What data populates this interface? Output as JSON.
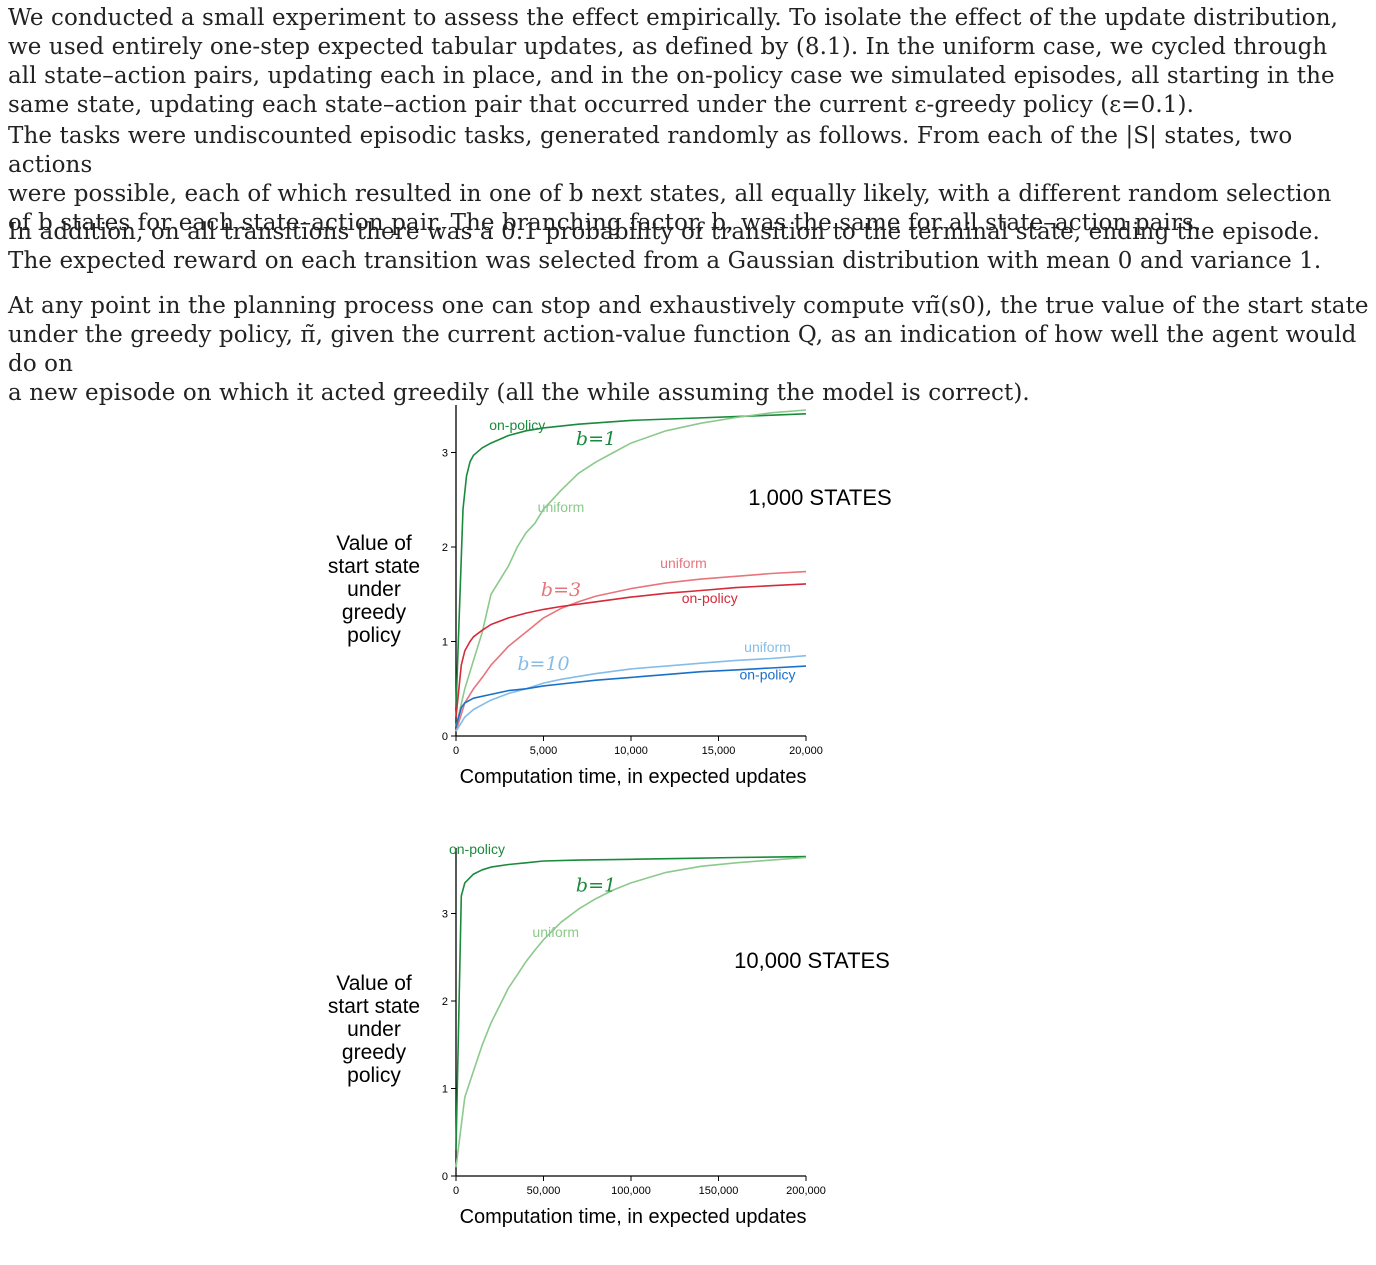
{
  "paragraphs": [
    "We conducted a small experiment to assess the effect empirically. To isolate the effect of the update distribution,\nwe used entirely one-step expected tabular updates, as defined by (8.1). In the uniform case, we cycled through\nall state–action pairs, updating each in place, and in the on-policy case we simulated episodes, all starting in the\nsame state, updating each state–action pair that occurred under the current ε-greedy policy (ε=0.1).",
    "The tasks were undiscounted episodic tasks, generated randomly as follows. From each of the |S| states, two actions\nwere possible, each of which resulted in one of b next states, all equally likely, with a different random selection\nof b states for each state–action pair. The branching factor, b, was the same for all state–action pairs.",
    "In addition, on all transitions there was a 0.1 probability of transition to the terminal state, ending the episode.\nThe expected reward on each transition was selected from a Gaussian distribution with mean 0 and variance 1.",
    "At any point in the planning process one can stop and exhaustively compute vπ̃(s0), the true value of the start state\nunder the greedy policy, π̃, given the current action-value function Q, as an indication of how well the agent would do on\na new episode on which it acted greedily (all the while assuming the model is correct)."
  ],
  "chart_data": [
    {
      "type": "line",
      "title": "1,000 STATES",
      "xlabel": "Computation time, in expected updates",
      "ylabel": "Value of start state under greedy policy",
      "xlim": [
        0,
        20000
      ],
      "ylim": [
        0,
        3.6
      ],
      "x_ticks": [
        0,
        5000,
        10000,
        15000,
        20000
      ],
      "x_tick_labels": [
        "0",
        "5,000",
        "10,000",
        "15,000",
        "20,000"
      ],
      "y_ticks": [
        0,
        1,
        2,
        3
      ],
      "y_tick_labels": [
        "0",
        "1",
        "2",
        "3"
      ],
      "groups": [
        {
          "label": "b=1",
          "label_x": 8000,
          "label_y": 3.08
        },
        {
          "label": "b=3",
          "label_x": 6000,
          "label_y": 1.48
        },
        {
          "label": "b=10",
          "label_x": 5000,
          "label_y": 0.7
        }
      ],
      "series": [
        {
          "name": "on-policy",
          "group": "b=1",
          "color": "#1a8a3c",
          "x": [
            0,
            400,
            600,
            800,
            1000,
            1500,
            2000,
            3000,
            4000,
            5000,
            7000,
            10000,
            13000,
            16000,
            20000
          ],
          "y": [
            0.3,
            2.4,
            2.75,
            2.9,
            2.97,
            3.05,
            3.1,
            3.18,
            3.23,
            3.26,
            3.3,
            3.34,
            3.36,
            3.38,
            3.41
          ],
          "label_x": 3500,
          "label_y": 3.24
        },
        {
          "name": "uniform",
          "group": "b=1",
          "color": "#8cc98c",
          "x": [
            0,
            500,
            1000,
            1500,
            2000,
            2500,
            3000,
            3500,
            4000,
            4500,
            5000,
            5500,
            6000,
            7000,
            8000,
            9000,
            10000,
            12000,
            14000,
            16000,
            18000,
            20000
          ],
          "y": [
            0.1,
            0.5,
            0.8,
            1.1,
            1.5,
            1.65,
            1.8,
            2.0,
            2.15,
            2.25,
            2.4,
            2.5,
            2.6,
            2.78,
            2.9,
            3.0,
            3.1,
            3.23,
            3.31,
            3.37,
            3.42,
            3.45
          ],
          "label_x": 6000,
          "label_y": 2.37
        },
        {
          "name": "uniform",
          "group": "b=3",
          "color": "#e8747c",
          "x": [
            0,
            500,
            1000,
            1500,
            2000,
            2500,
            3000,
            4000,
            5000,
            6000,
            7000,
            8000,
            10000,
            12000,
            14000,
            16000,
            18000,
            20000
          ],
          "y": [
            0.05,
            0.35,
            0.5,
            0.62,
            0.75,
            0.85,
            0.95,
            1.1,
            1.25,
            1.35,
            1.42,
            1.48,
            1.56,
            1.62,
            1.66,
            1.69,
            1.72,
            1.74
          ],
          "label_x": 13000,
          "label_y": 1.78
        },
        {
          "name": "on-policy",
          "group": "b=3",
          "color": "#d42a3a",
          "x": [
            0,
            300,
            500,
            800,
            1000,
            1500,
            2000,
            3000,
            4000,
            5000,
            6000,
            8000,
            10000,
            12000,
            14000,
            16000,
            18000,
            20000
          ],
          "y": [
            0.2,
            0.75,
            0.9,
            1.0,
            1.05,
            1.12,
            1.18,
            1.25,
            1.3,
            1.34,
            1.37,
            1.42,
            1.47,
            1.51,
            1.54,
            1.57,
            1.59,
            1.61
          ],
          "label_x": 14500,
          "label_y": 1.41
        },
        {
          "name": "uniform",
          "group": "b=10",
          "color": "#85bde8",
          "x": [
            0,
            500,
            1000,
            2000,
            3000,
            4000,
            5000,
            6000,
            8000,
            10000,
            12000,
            14000,
            16000,
            18000,
            20000
          ],
          "y": [
            0.05,
            0.2,
            0.28,
            0.38,
            0.45,
            0.5,
            0.56,
            0.6,
            0.66,
            0.71,
            0.74,
            0.77,
            0.8,
            0.82,
            0.85
          ],
          "label_x": 17800,
          "label_y": 0.89
        },
        {
          "name": "on-policy",
          "group": "b=10",
          "color": "#1a70c8",
          "x": [
            0,
            300,
            500,
            1000,
            2000,
            3000,
            4000,
            5000,
            6000,
            8000,
            10000,
            12000,
            14000,
            16000,
            18000,
            20000
          ],
          "y": [
            0.1,
            0.3,
            0.35,
            0.4,
            0.44,
            0.48,
            0.5,
            0.53,
            0.55,
            0.59,
            0.62,
            0.65,
            0.68,
            0.7,
            0.72,
            0.74
          ],
          "label_x": 17800,
          "label_y": 0.6
        }
      ]
    },
    {
      "type": "line",
      "title": "10,000 STATES",
      "xlabel": "Computation time, in expected updates",
      "ylabel": "Value of start state under greedy policy",
      "xlim": [
        0,
        200000
      ],
      "ylim": [
        0,
        3.8
      ],
      "x_ticks": [
        0,
        50000,
        100000,
        150000,
        200000
      ],
      "x_tick_labels": [
        "0",
        "50,000",
        "100,000",
        "150,000",
        "200,000"
      ],
      "y_ticks": [
        0,
        1,
        2,
        3
      ],
      "y_tick_labels": [
        "0",
        "1",
        "2",
        "3"
      ],
      "groups": [
        {
          "label": "b=1",
          "label_x": 80000,
          "label_y": 3.25
        }
      ],
      "series": [
        {
          "name": "on-policy",
          "group": "b=1",
          "color": "#1a8a3c",
          "x": [
            0,
            3000,
            5000,
            10000,
            15000,
            20000,
            30000,
            40000,
            50000,
            70000,
            100000,
            130000,
            160000,
            200000
          ],
          "y": [
            0.3,
            3.2,
            3.35,
            3.45,
            3.5,
            3.53,
            3.56,
            3.58,
            3.6,
            3.61,
            3.62,
            3.63,
            3.64,
            3.65
          ],
          "label_x": 12000,
          "label_y": 3.68
        },
        {
          "name": "uniform",
          "group": "b=1",
          "color": "#8cc98c",
          "x": [
            0,
            5000,
            10000,
            15000,
            20000,
            25000,
            30000,
            35000,
            40000,
            45000,
            50000,
            60000,
            70000,
            80000,
            90000,
            100000,
            120000,
            140000,
            160000,
            180000,
            200000
          ],
          "y": [
            0.1,
            0.9,
            1.2,
            1.5,
            1.75,
            1.95,
            2.15,
            2.3,
            2.45,
            2.58,
            2.7,
            2.9,
            3.05,
            3.17,
            3.27,
            3.35,
            3.47,
            3.54,
            3.58,
            3.61,
            3.64
          ],
          "label_x": 57000,
          "label_y": 2.73
        }
      ]
    }
  ]
}
